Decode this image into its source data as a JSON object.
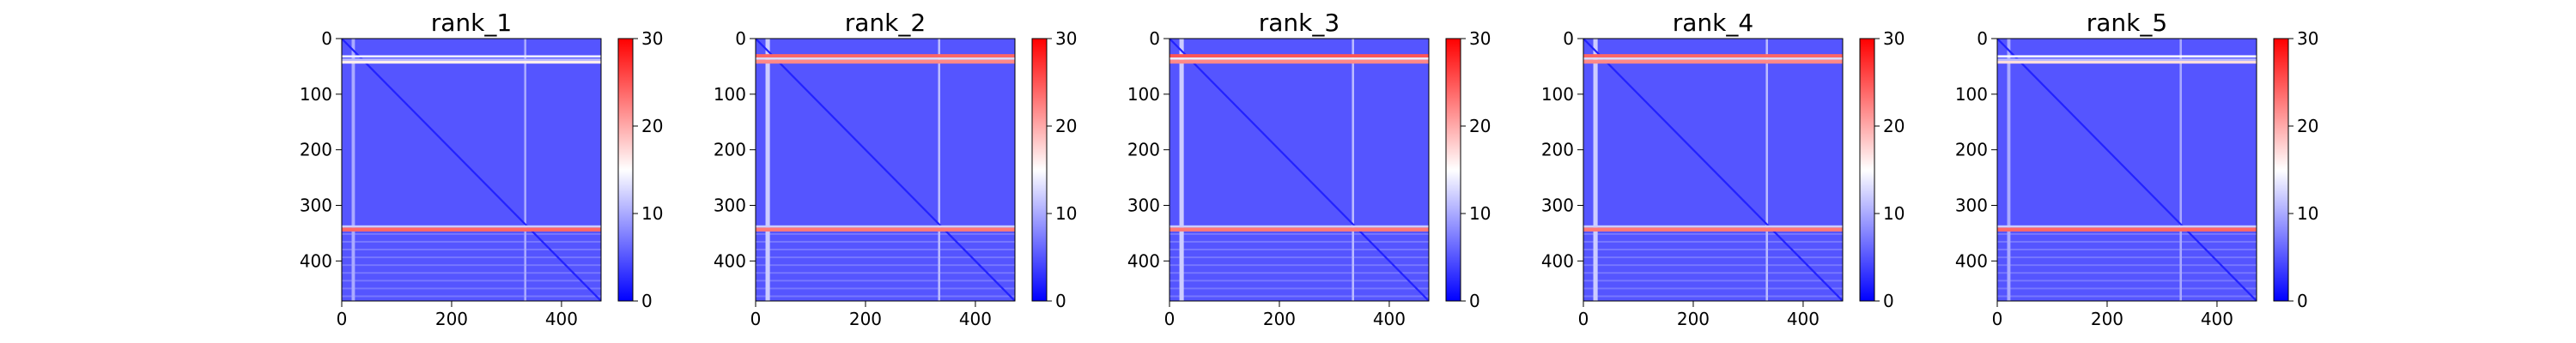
{
  "chart_data": [
    {
      "type": "heatmap",
      "title": "rank_1",
      "xlabel": "",
      "ylabel": "",
      "xlim": [
        0,
        472
      ],
      "ylim": [
        472,
        0
      ],
      "x_ticks": [
        "0",
        "200",
        "400"
      ],
      "y_ticks": [
        "0",
        "100",
        "200",
        "300",
        "400"
      ],
      "colorbar": {
        "range": [
          0,
          30
        ],
        "ticks": [
          "0",
          "10",
          "20",
          "30"
        ],
        "colormap": [
          "#0000ff",
          "#ffffff",
          "#ff0000"
        ]
      },
      "background_value": 5,
      "diagonal_value": 2,
      "bands": [
        {
          "row_from": 30,
          "row_to": 34,
          "value": 14
        },
        {
          "row_from": 36,
          "row_to": 40,
          "value": 11
        },
        {
          "row_from": 40,
          "row_to": 45,
          "value": 16
        },
        {
          "row_from": 336,
          "row_to": 340,
          "value": 12
        },
        {
          "row_from": 340,
          "row_to": 347,
          "value": 24
        }
      ],
      "columns": [
        {
          "col_from": 18,
          "col_to": 24,
          "value": 10
        },
        {
          "col_from": 332,
          "col_to": 336,
          "value": 10
        }
      ]
    },
    {
      "type": "heatmap",
      "title": "rank_2",
      "xlabel": "",
      "ylabel": "",
      "xlim": [
        0,
        472
      ],
      "ylim": [
        472,
        0
      ],
      "x_ticks": [
        "0",
        "200",
        "400"
      ],
      "y_ticks": [
        "0",
        "100",
        "200",
        "300",
        "400"
      ],
      "colorbar": {
        "range": [
          0,
          30
        ],
        "ticks": [
          "0",
          "10",
          "20",
          "30"
        ],
        "colormap": [
          "#0000ff",
          "#ffffff",
          "#ff0000"
        ]
      },
      "background_value": 5,
      "diagonal_value": 2,
      "bands": [
        {
          "row_from": 28,
          "row_to": 34,
          "value": 24
        },
        {
          "row_from": 34,
          "row_to": 38,
          "value": 13
        },
        {
          "row_from": 38,
          "row_to": 45,
          "value": 22
        },
        {
          "row_from": 336,
          "row_to": 340,
          "value": 12
        },
        {
          "row_from": 340,
          "row_to": 347,
          "value": 23
        }
      ],
      "columns": [
        {
          "col_from": 18,
          "col_to": 26,
          "value": 12
        },
        {
          "col_from": 332,
          "col_to": 336,
          "value": 11
        }
      ]
    },
    {
      "type": "heatmap",
      "title": "rank_3",
      "xlabel": "",
      "ylabel": "",
      "xlim": [
        0,
        472
      ],
      "ylim": [
        472,
        0
      ],
      "x_ticks": [
        "0",
        "200",
        "400"
      ],
      "y_ticks": [
        "0",
        "100",
        "200",
        "300",
        "400"
      ],
      "colorbar": {
        "range": [
          0,
          30
        ],
        "ticks": [
          "0",
          "10",
          "20",
          "30"
        ],
        "colormap": [
          "#0000ff",
          "#ffffff",
          "#ff0000"
        ]
      },
      "background_value": 5,
      "diagonal_value": 2,
      "bands": [
        {
          "row_from": 28,
          "row_to": 34,
          "value": 25
        },
        {
          "row_from": 34,
          "row_to": 38,
          "value": 14
        },
        {
          "row_from": 38,
          "row_to": 45,
          "value": 22
        },
        {
          "row_from": 336,
          "row_to": 340,
          "value": 12
        },
        {
          "row_from": 340,
          "row_to": 347,
          "value": 23
        }
      ],
      "columns": [
        {
          "col_from": 18,
          "col_to": 26,
          "value": 12
        },
        {
          "col_from": 332,
          "col_to": 336,
          "value": 11
        }
      ]
    },
    {
      "type": "heatmap",
      "title": "rank_4",
      "xlabel": "",
      "ylabel": "",
      "xlim": [
        0,
        472
      ],
      "ylim": [
        472,
        0
      ],
      "x_ticks": [
        "0",
        "200",
        "400"
      ],
      "y_ticks": [
        "0",
        "100",
        "200",
        "300",
        "400"
      ],
      "colorbar": {
        "range": [
          0,
          30
        ],
        "ticks": [
          "0",
          "10",
          "20",
          "30"
        ],
        "colormap": [
          "#0000ff",
          "#ffffff",
          "#ff0000"
        ]
      },
      "background_value": 5,
      "diagonal_value": 2,
      "bands": [
        {
          "row_from": 28,
          "row_to": 34,
          "value": 24
        },
        {
          "row_from": 34,
          "row_to": 38,
          "value": 13
        },
        {
          "row_from": 38,
          "row_to": 45,
          "value": 22
        },
        {
          "row_from": 336,
          "row_to": 340,
          "value": 12
        },
        {
          "row_from": 340,
          "row_to": 347,
          "value": 23
        }
      ],
      "columns": [
        {
          "col_from": 18,
          "col_to": 26,
          "value": 12
        },
        {
          "col_from": 332,
          "col_to": 336,
          "value": 11
        }
      ]
    },
    {
      "type": "heatmap",
      "title": "rank_5",
      "xlabel": "",
      "ylabel": "",
      "xlim": [
        0,
        472
      ],
      "ylim": [
        472,
        0
      ],
      "x_ticks": [
        "0",
        "200",
        "400"
      ],
      "y_ticks": [
        "0",
        "100",
        "200",
        "300",
        "400"
      ],
      "colorbar": {
        "range": [
          0,
          30
        ],
        "ticks": [
          "0",
          "10",
          "20",
          "30"
        ],
        "colormap": [
          "#0000ff",
          "#ffffff",
          "#ff0000"
        ]
      },
      "background_value": 5,
      "diagonal_value": 2,
      "bands": [
        {
          "row_from": 30,
          "row_to": 34,
          "value": 15
        },
        {
          "row_from": 36,
          "row_to": 40,
          "value": 11
        },
        {
          "row_from": 40,
          "row_to": 45,
          "value": 17
        },
        {
          "row_from": 336,
          "row_to": 340,
          "value": 12
        },
        {
          "row_from": 340,
          "row_to": 347,
          "value": 24
        }
      ],
      "columns": [
        {
          "col_from": 18,
          "col_to": 24,
          "value": 10
        },
        {
          "col_from": 332,
          "col_to": 336,
          "value": 10
        }
      ]
    }
  ]
}
